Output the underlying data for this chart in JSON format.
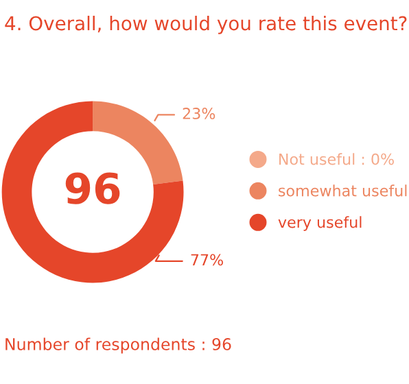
{
  "chart_data": {
    "type": "donut",
    "title": "4. Overall, how would you rate this event?",
    "categories": [
      "Not useful : 0%",
      "somewhat useful",
      "very useful"
    ],
    "values": [
      0,
      23,
      77
    ],
    "colors": [
      "#f4a98a",
      "#ec8560",
      "#e5462a"
    ],
    "value_labels": [
      null,
      "23%",
      "77%"
    ],
    "legend": "right",
    "annotations": [
      "96",
      "Number of respondents : 96"
    ]
  }
}
